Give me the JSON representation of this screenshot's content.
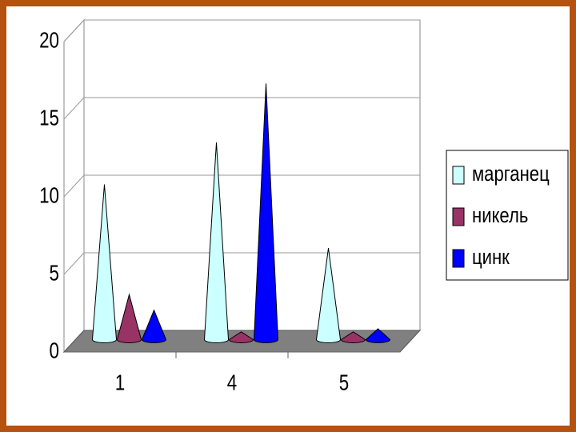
{
  "chart_data": {
    "type": "cone3d",
    "categories": [
      "1",
      "4",
      "5"
    ],
    "series": [
      {
        "name": "марганец",
        "color": "#ccffff",
        "values": [
          10,
          12.7,
          5.9
        ]
      },
      {
        "name": "никель",
        "color": "#993366",
        "values": [
          2.9,
          0.5,
          0.5
        ]
      },
      {
        "name": "цинк",
        "color": "#0000ff",
        "values": [
          1.9,
          16.5,
          0.7
        ]
      }
    ],
    "ylim": [
      0,
      20
    ],
    "yticks": [
      0,
      5,
      10,
      15,
      20
    ],
    "grid": true,
    "legend": "right"
  }
}
